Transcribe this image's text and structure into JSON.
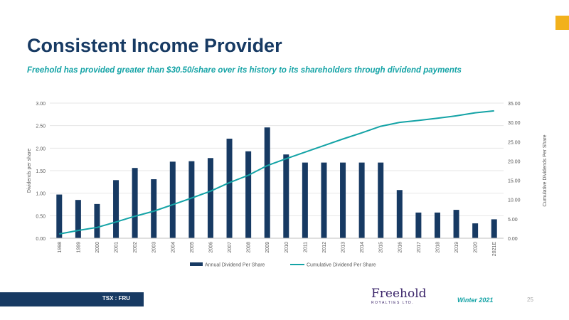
{
  "slide": {
    "title": "Consistent Income Provider",
    "subtitle": "Freehold has provided greater than $30.50/share over its history to its shareholders through dividend payments",
    "ticker": "TSX : FRU",
    "logo_main": "Freehold",
    "logo_sub": "ROYALTIES LTD.",
    "period": "Winter 2021",
    "page_number": "25"
  },
  "colors": {
    "bar": "#173a63",
    "line": "#14a3a6",
    "accent": "#f2b11c",
    "title": "#173a63",
    "axis_text": "#595959",
    "grid": "#e6e6e6"
  },
  "chart_data": {
    "type": "bar",
    "categories": [
      "1998",
      "1999",
      "2000",
      "2001",
      "2002",
      "2003",
      "2004",
      "2005",
      "2006",
      "2007",
      "2008",
      "2009",
      "2010",
      "2011",
      "2012",
      "2013",
      "2014",
      "2015",
      "2016",
      "2017",
      "2018",
      "2019",
      "2020",
      "2021E"
    ],
    "series": [
      {
        "name": "Annual Dividend Per Share",
        "type": "bar",
        "axis": "left",
        "values": [
          0.97,
          0.85,
          0.76,
          1.29,
          1.56,
          1.31,
          1.7,
          1.71,
          1.78,
          2.21,
          1.93,
          2.46,
          1.86,
          1.68,
          1.68,
          1.68,
          1.68,
          1.68,
          1.07,
          0.57,
          0.57,
          0.63,
          0.33,
          0.42
        ]
      },
      {
        "name": "Cumulative Dividend Per Share",
        "type": "line",
        "axis": "right",
        "values": [
          1.1,
          2.0,
          2.8,
          4.2,
          5.7,
          7.0,
          8.7,
          10.4,
          12.2,
          14.4,
          16.3,
          18.8,
          20.6,
          22.3,
          24.0,
          25.7,
          27.3,
          29.0,
          30.0,
          30.5,
          31.1,
          31.7,
          32.5,
          33.0
        ]
      }
    ],
    "ylabel_left": "Dividends per share",
    "ylabel_right": "Cumulative Dividends Per Share",
    "ylim_left": [
      0,
      3
    ],
    "ylim_right": [
      0,
      35
    ],
    "yticks_left": [
      "0.00",
      "0.50",
      "1.00",
      "1.50",
      "2.00",
      "2.50",
      "3.00"
    ],
    "yticks_right": [
      "0.00",
      "5.00",
      "10.00",
      "15.00",
      "20.00",
      "25.00",
      "30.00",
      "35.00"
    ],
    "grid": true,
    "legend_position": "bottom"
  }
}
